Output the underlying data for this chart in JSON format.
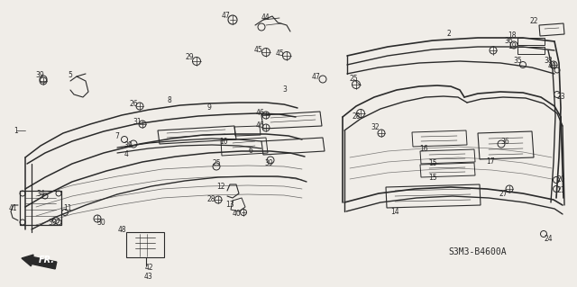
{
  "bg_color": "#f0ede8",
  "line_color": "#2a2a2a",
  "diagram_code": "S3M3-B4600A",
  "fr_label": "FR.",
  "font_size_label": 5.5,
  "font_size_code": 7.0,
  "fig_w": 6.4,
  "fig_h": 3.19,
  "dpi": 100
}
